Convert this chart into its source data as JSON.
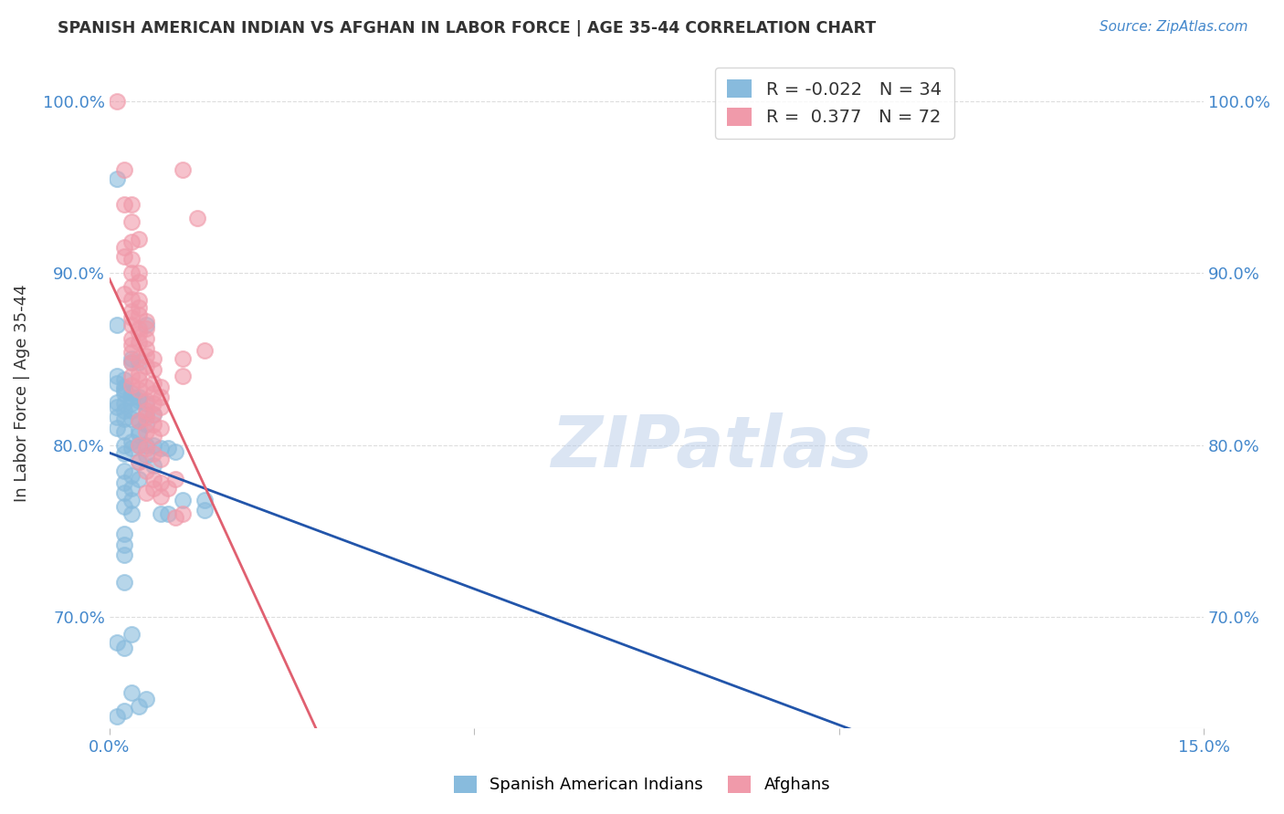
{
  "title": "SPANISH AMERICAN INDIAN VS AFGHAN IN LABOR FORCE | AGE 35-44 CORRELATION CHART",
  "source": "Source: ZipAtlas.com",
  "ylabel": "In Labor Force | Age 35-44",
  "xlim": [
    0.0,
    0.15
  ],
  "ylim": [
    0.635,
    1.025
  ],
  "yticks": [
    0.7,
    0.8,
    0.9,
    1.0
  ],
  "ytick_labels": [
    "70.0%",
    "80.0%",
    "90.0%",
    "100.0%"
  ],
  "xticks": [
    0.0,
    0.05,
    0.1,
    0.15
  ],
  "xtick_labels": [
    "0.0%",
    "",
    "",
    "15.0%"
  ],
  "watermark": "ZIPatlas",
  "blue_color": "#88bbdd",
  "pink_color": "#f09aaa",
  "blue_line_color": "#2255aa",
  "pink_line_color": "#e06070",
  "blue_scatter": [
    [
      0.001,
      0.955
    ],
    [
      0.005,
      0.87
    ],
    [
      0.001,
      0.87
    ],
    [
      0.003,
      0.85
    ],
    [
      0.003,
      0.848
    ],
    [
      0.004,
      0.848
    ],
    [
      0.001,
      0.84
    ],
    [
      0.002,
      0.838
    ],
    [
      0.001,
      0.836
    ],
    [
      0.002,
      0.834
    ],
    [
      0.002,
      0.832
    ],
    [
      0.002,
      0.83
    ],
    [
      0.003,
      0.83
    ],
    [
      0.003,
      0.828
    ],
    [
      0.004,
      0.828
    ],
    [
      0.004,
      0.826
    ],
    [
      0.001,
      0.825
    ],
    [
      0.002,
      0.824
    ],
    [
      0.003,
      0.824
    ],
    [
      0.005,
      0.824
    ],
    [
      0.001,
      0.822
    ],
    [
      0.002,
      0.82
    ],
    [
      0.003,
      0.82
    ],
    [
      0.005,
      0.818
    ],
    [
      0.006,
      0.818
    ],
    [
      0.001,
      0.816
    ],
    [
      0.002,
      0.815
    ],
    [
      0.003,
      0.815
    ],
    [
      0.004,
      0.814
    ],
    [
      0.005,
      0.812
    ],
    [
      0.001,
      0.81
    ],
    [
      0.002,
      0.808
    ],
    [
      0.004,
      0.806
    ],
    [
      0.003,
      0.802
    ],
    [
      0.002,
      0.8
    ],
    [
      0.004,
      0.8
    ],
    [
      0.006,
      0.8
    ],
    [
      0.003,
      0.798
    ],
    [
      0.002,
      0.795
    ],
    [
      0.005,
      0.794
    ],
    [
      0.004,
      0.79
    ],
    [
      0.006,
      0.788
    ],
    [
      0.002,
      0.785
    ],
    [
      0.003,
      0.782
    ],
    [
      0.004,
      0.78
    ],
    [
      0.002,
      0.778
    ],
    [
      0.003,
      0.775
    ],
    [
      0.002,
      0.772
    ],
    [
      0.003,
      0.768
    ],
    [
      0.002,
      0.764
    ],
    [
      0.003,
      0.76
    ],
    [
      0.004,
      0.808
    ],
    [
      0.005,
      0.8
    ],
    [
      0.007,
      0.798
    ],
    [
      0.008,
      0.798
    ],
    [
      0.009,
      0.796
    ],
    [
      0.002,
      0.748
    ],
    [
      0.002,
      0.742
    ],
    [
      0.002,
      0.736
    ],
    [
      0.002,
      0.72
    ],
    [
      0.003,
      0.69
    ],
    [
      0.001,
      0.685
    ],
    [
      0.002,
      0.682
    ],
    [
      0.007,
      0.76
    ],
    [
      0.013,
      0.768
    ],
    [
      0.008,
      0.76
    ],
    [
      0.013,
      0.762
    ],
    [
      0.01,
      0.768
    ],
    [
      0.005,
      0.652
    ],
    [
      0.003,
      0.656
    ],
    [
      0.004,
      0.648
    ],
    [
      0.002,
      0.645
    ],
    [
      0.001,
      0.642
    ]
  ],
  "pink_scatter": [
    [
      0.001,
      1.0
    ],
    [
      0.01,
      0.96
    ],
    [
      0.002,
      0.96
    ],
    [
      0.003,
      0.94
    ],
    [
      0.003,
      0.93
    ],
    [
      0.002,
      0.94
    ],
    [
      0.004,
      0.92
    ],
    [
      0.003,
      0.918
    ],
    [
      0.002,
      0.915
    ],
    [
      0.002,
      0.91
    ],
    [
      0.003,
      0.908
    ],
    [
      0.003,
      0.9
    ],
    [
      0.004,
      0.9
    ],
    [
      0.004,
      0.895
    ],
    [
      0.003,
      0.892
    ],
    [
      0.002,
      0.888
    ],
    [
      0.003,
      0.885
    ],
    [
      0.004,
      0.884
    ],
    [
      0.004,
      0.88
    ],
    [
      0.003,
      0.878
    ],
    [
      0.004,
      0.876
    ],
    [
      0.003,
      0.874
    ],
    [
      0.005,
      0.872
    ],
    [
      0.003,
      0.87
    ],
    [
      0.004,
      0.868
    ],
    [
      0.005,
      0.868
    ],
    [
      0.004,
      0.865
    ],
    [
      0.003,
      0.862
    ],
    [
      0.005,
      0.862
    ],
    [
      0.004,
      0.86
    ],
    [
      0.003,
      0.858
    ],
    [
      0.005,
      0.856
    ],
    [
      0.003,
      0.854
    ],
    [
      0.005,
      0.852
    ],
    [
      0.004,
      0.85
    ],
    [
      0.006,
      0.85
    ],
    [
      0.003,
      0.848
    ],
    [
      0.005,
      0.846
    ],
    [
      0.006,
      0.844
    ],
    [
      0.004,
      0.842
    ],
    [
      0.003,
      0.84
    ],
    [
      0.004,
      0.838
    ],
    [
      0.006,
      0.836
    ],
    [
      0.003,
      0.835
    ],
    [
      0.005,
      0.834
    ],
    [
      0.007,
      0.834
    ],
    [
      0.004,
      0.832
    ],
    [
      0.006,
      0.83
    ],
    [
      0.007,
      0.828
    ],
    [
      0.005,
      0.826
    ],
    [
      0.006,
      0.824
    ],
    [
      0.007,
      0.822
    ],
    [
      0.005,
      0.82
    ],
    [
      0.006,
      0.818
    ],
    [
      0.005,
      0.816
    ],
    [
      0.004,
      0.814
    ],
    [
      0.006,
      0.812
    ],
    [
      0.007,
      0.81
    ],
    [
      0.005,
      0.808
    ],
    [
      0.006,
      0.805
    ],
    [
      0.004,
      0.8
    ],
    [
      0.005,
      0.798
    ],
    [
      0.006,
      0.795
    ],
    [
      0.007,
      0.792
    ],
    [
      0.004,
      0.79
    ],
    [
      0.005,
      0.785
    ],
    [
      0.006,
      0.78
    ],
    [
      0.007,
      0.778
    ],
    [
      0.006,
      0.775
    ],
    [
      0.005,
      0.772
    ],
    [
      0.007,
      0.77
    ],
    [
      0.012,
      0.932
    ],
    [
      0.01,
      0.85
    ],
    [
      0.01,
      0.84
    ],
    [
      0.013,
      0.855
    ],
    [
      0.009,
      0.78
    ],
    [
      0.008,
      0.775
    ],
    [
      0.01,
      0.76
    ],
    [
      0.009,
      0.758
    ]
  ],
  "background_color": "#ffffff",
  "grid_color": "#dddddd",
  "title_color": "#333333",
  "tick_color": "#4488cc"
}
